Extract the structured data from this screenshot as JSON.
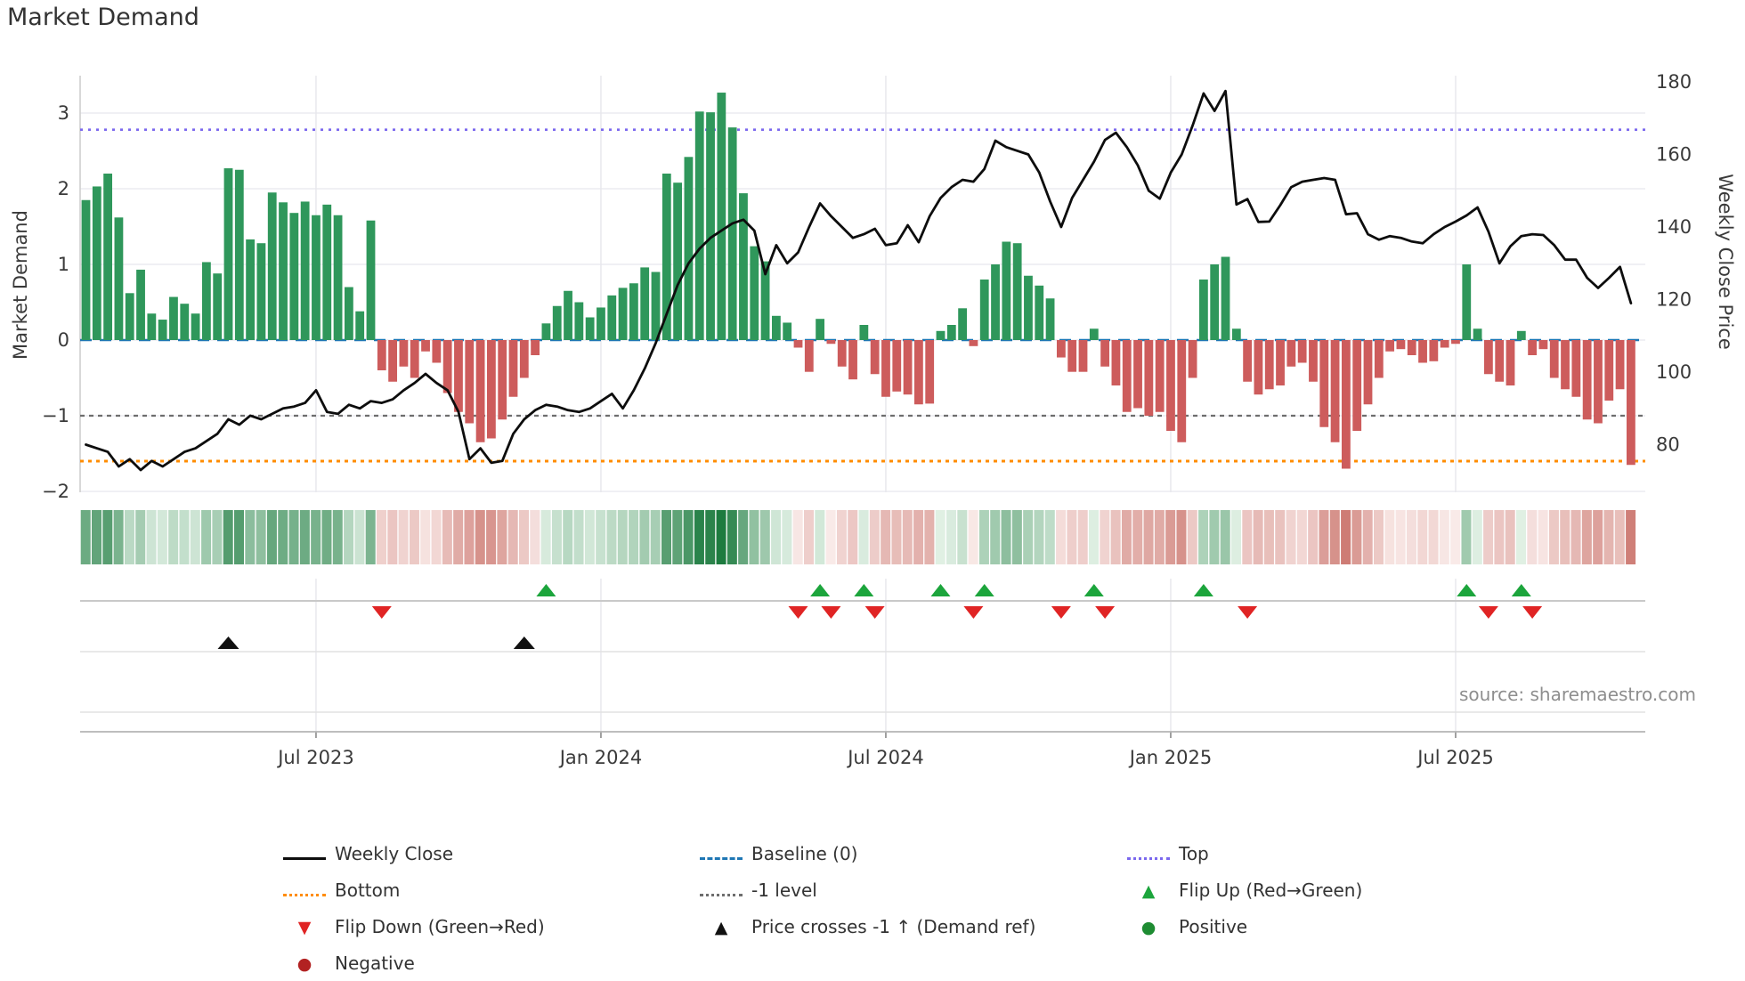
{
  "title": "Market Demand",
  "axes": {
    "y_left_label": "Market Demand",
    "y_right_label": "Weekly Close Price",
    "y_left_ticks": [
      "3",
      "2",
      "1",
      "0",
      "−1",
      "−2"
    ],
    "y_right_ticks": [
      "180",
      "160",
      "140",
      "120",
      "100",
      "80"
    ],
    "x_ticks": [
      "Jul 2023",
      "Jan 2024",
      "Jul 2024",
      "Jan 2025",
      "Jul 2025"
    ]
  },
  "source_text": "source: sharemaestro.com",
  "colors": {
    "bar_positive": "#2f975b",
    "bar_negative": "#cd5c5c",
    "price_line": "#0d0d0d",
    "baseline": "#1f77b4",
    "top_line": "#7b68ee",
    "bottom_line": "#ff8c00",
    "minus_one_line": "#6e6e6e",
    "flip_up": "#1ca53c",
    "flip_down": "#e02424",
    "price_cross": "#111111",
    "positive_dot": "#1e8c32",
    "negative_dot": "#b22222"
  },
  "legend": {
    "entries": [
      {
        "id": "weekly-close",
        "label": "Weekly Close",
        "swatch": "line-solid",
        "color": "#0d0d0d"
      },
      {
        "id": "baseline",
        "label": "Baseline (0)",
        "swatch": "line-dash",
        "color": "#1f77b4"
      },
      {
        "id": "top",
        "label": "Top",
        "swatch": "line-dot",
        "color": "#7b68ee"
      },
      {
        "id": "bottom",
        "label": "Bottom",
        "swatch": "line-dot",
        "color": "#ff8c00"
      },
      {
        "id": "minus-1-level",
        "label": "-1 level",
        "swatch": "line-dot",
        "color": "#6e6e6e"
      },
      {
        "id": "flip-up",
        "label": "Flip Up (Red→Green)",
        "swatch": "tri-up",
        "color": "#1ca53c"
      },
      {
        "id": "flip-down",
        "label": "Flip Down (Green→Red)",
        "swatch": "tri-down",
        "color": "#e02424"
      },
      {
        "id": "price-cross",
        "label": "Price crosses -1 ↑ (Demand ref)",
        "swatch": "tri-up",
        "color": "#111111"
      },
      {
        "id": "positive",
        "label": "Positive",
        "swatch": "dot",
        "color": "#1e8c32"
      },
      {
        "id": "negative",
        "label": "Negative",
        "swatch": "dot",
        "color": "#b22222"
      }
    ]
  },
  "chart_data": {
    "type": "combo",
    "title": "Market Demand",
    "xlabel": "",
    "ylabel_left": "Market Demand",
    "ylabel_right": "Weekly Close Price",
    "x_unit": "week_index",
    "n_weeks": 142,
    "x_tick_labels": [
      "Jul 2023",
      "Jan 2024",
      "Jul 2024",
      "Jan 2025",
      "Jul 2025"
    ],
    "x_tick_week_index": [
      21,
      47,
      73,
      99,
      125
    ],
    "ylim_left": [
      -2.05,
      3.5
    ],
    "ylim_right": [
      67,
      182
    ],
    "grid": true,
    "legend_position": "bottom",
    "reference_lines": {
      "baseline": 0,
      "top": 2.78,
      "bottom": -1.6,
      "minus_one_level": -1
    },
    "series": [
      {
        "name": "Market Demand",
        "type": "bar",
        "axis": "left",
        "values": [
          1.85,
          2.03,
          2.2,
          1.62,
          0.62,
          0.93,
          0.35,
          0.27,
          0.57,
          0.48,
          0.35,
          1.03,
          0.88,
          2.27,
          2.25,
          1.33,
          1.28,
          1.95,
          1.82,
          1.68,
          1.83,
          1.65,
          1.79,
          1.65,
          0.7,
          0.38,
          1.58,
          -0.4,
          -0.55,
          -0.35,
          -0.5,
          -0.15,
          -0.3,
          -0.7,
          -0.95,
          -1.1,
          -1.35,
          -1.3,
          -1.05,
          -0.75,
          -0.5,
          -0.2,
          0.22,
          0.45,
          0.65,
          0.5,
          0.3,
          0.43,
          0.59,
          0.69,
          0.75,
          0.96,
          0.9,
          2.2,
          2.08,
          2.42,
          3.02,
          3.01,
          3.27,
          2.81,
          1.94,
          1.24,
          1.04,
          0.32,
          0.23,
          -0.1,
          -0.42,
          0.28,
          -0.05,
          -0.35,
          -0.52,
          0.2,
          -0.45,
          -0.75,
          -0.68,
          -0.72,
          -0.85,
          -0.84,
          0.12,
          0.2,
          0.42,
          -0.08,
          0.8,
          1.0,
          1.3,
          1.28,
          0.85,
          0.72,
          0.55,
          -0.23,
          -0.42,
          -0.42,
          0.15,
          -0.35,
          -0.6,
          -0.95,
          -0.9,
          -1.0,
          -0.95,
          -1.2,
          -1.35,
          -0.5,
          0.8,
          1.0,
          1.1,
          0.15,
          -0.55,
          -0.72,
          -0.65,
          -0.6,
          -0.35,
          -0.3,
          -0.55,
          -1.15,
          -1.35,
          -1.7,
          -1.2,
          -0.85,
          -0.5,
          -0.15,
          -0.12,
          -0.2,
          -0.3,
          -0.28,
          -0.1,
          -0.05,
          1.0,
          0.15,
          -0.45,
          -0.55,
          -0.6,
          0.12,
          -0.2,
          -0.12,
          -0.5,
          -0.65,
          -0.75,
          -1.05,
          -1.1,
          -0.8,
          -0.65,
          -1.65
        ]
      },
      {
        "name": "Weekly Close",
        "type": "line",
        "axis": "right",
        "values": [
          80,
          79,
          78,
          74,
          76,
          73,
          75.5,
          74,
          76,
          78,
          79,
          81,
          83,
          87,
          85.5,
          88,
          87,
          88.5,
          90,
          90.5,
          91.5,
          95,
          89,
          88.5,
          91,
          90,
          92,
          91.5,
          92.5,
          95,
          97,
          99.5,
          97,
          95,
          89,
          76,
          79,
          75,
          75.5,
          83,
          87,
          89.5,
          91,
          90.5,
          89.5,
          89,
          90,
          92,
          94,
          90,
          95,
          101,
          108,
          116,
          124,
          130,
          134,
          137,
          139,
          141,
          142,
          139,
          127,
          135,
          130,
          133,
          140,
          146.5,
          143,
          140,
          137,
          138,
          139.5,
          135,
          135.5,
          140.5,
          135.8,
          143,
          148,
          151,
          153,
          152.5,
          156,
          163.8,
          162,
          161,
          160,
          155,
          147,
          140,
          148,
          153,
          158,
          164,
          166,
          162,
          157,
          150,
          147.8,
          155,
          160,
          168,
          176.8,
          172,
          177.5,
          146.2,
          147.7,
          141.4,
          141.5,
          146,
          151,
          152.5,
          153,
          153.5,
          153,
          143.5,
          143.8,
          138,
          136.5,
          137.5,
          137,
          136,
          135.5,
          138,
          140,
          141.5,
          143.2,
          145.4,
          138.7,
          130,
          134.7,
          137.5,
          138,
          137.8,
          135,
          131,
          131,
          126,
          123.2,
          126,
          129,
          119
        ]
      }
    ],
    "heatmap_strip": "same sign/intensity as Market Demand bar values",
    "markers": {
      "flip_up_week_index": [
        42,
        67,
        71,
        78,
        82,
        92,
        102,
        126,
        131
      ],
      "flip_down_week_index": [
        27,
        65,
        68,
        72,
        81,
        89,
        93,
        106,
        128,
        132
      ],
      "price_cross_week_index": [
        13,
        40
      ]
    }
  }
}
